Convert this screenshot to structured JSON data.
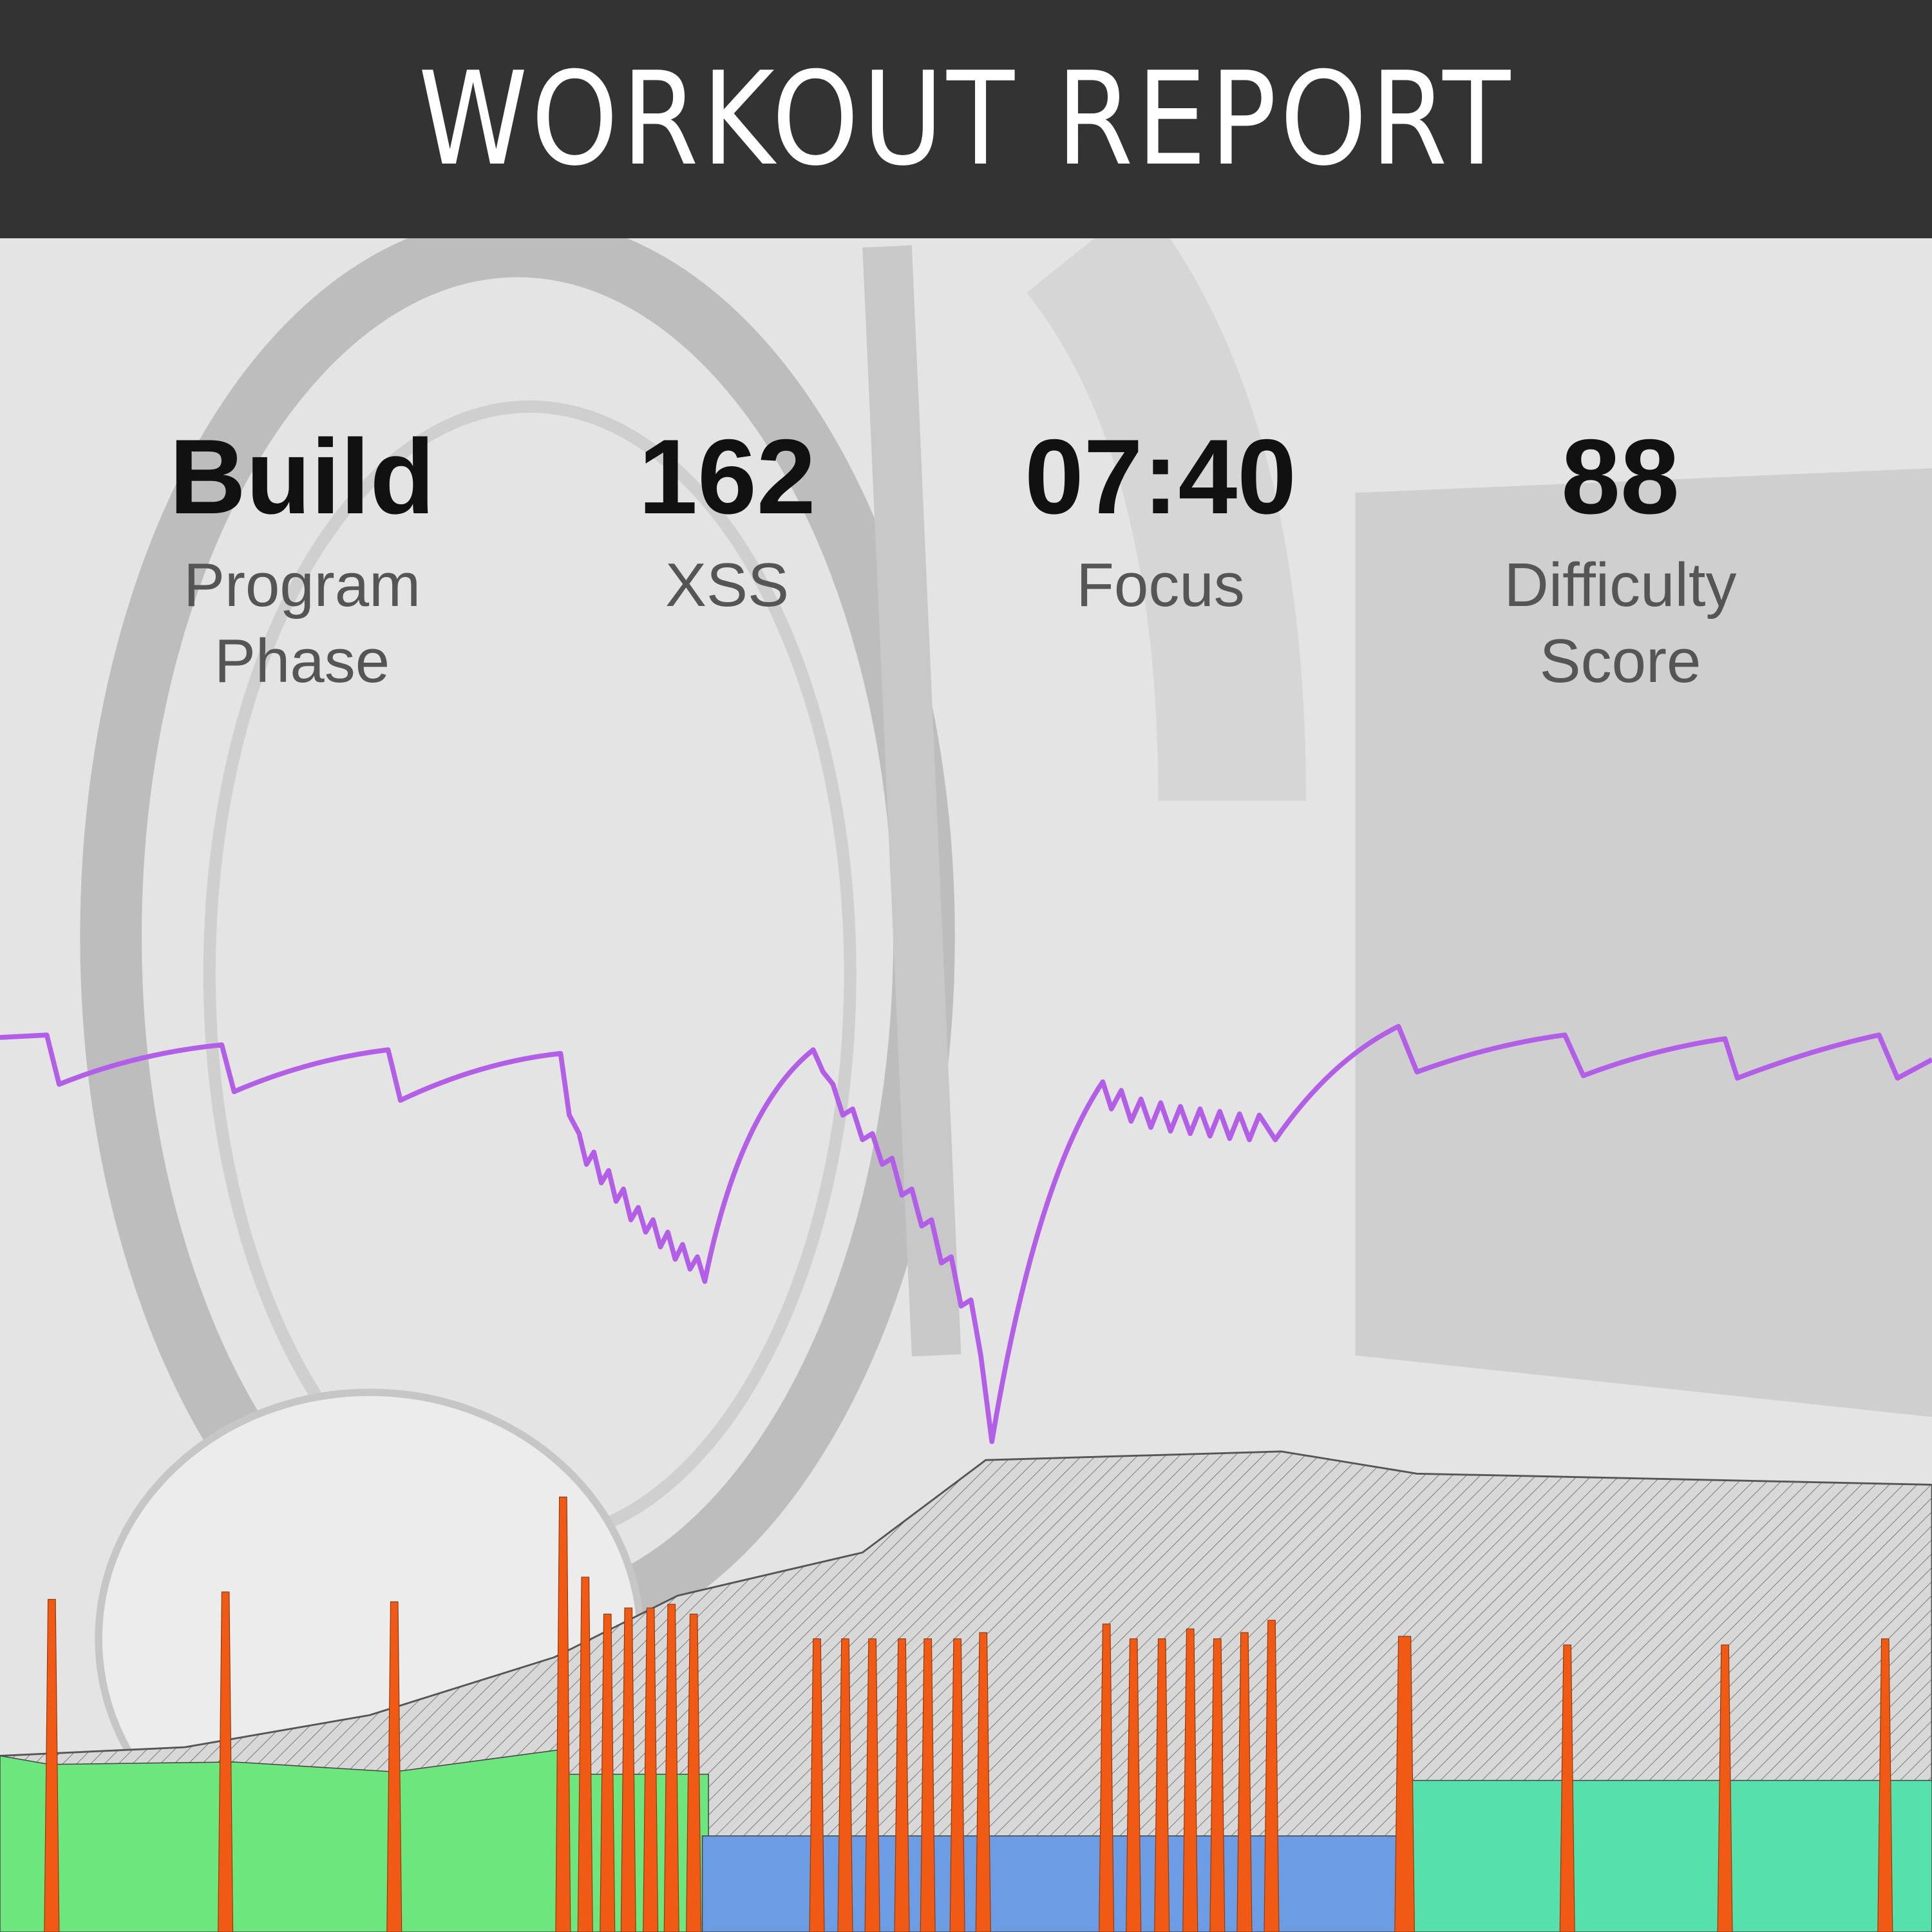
{
  "header": {
    "title": "WORKOUT REPORT"
  },
  "stats": [
    {
      "value": "Build",
      "label": "Program Phase"
    },
    {
      "value": "162",
      "label": "XSS"
    },
    {
      "value": "07:40",
      "label": "Focus"
    },
    {
      "value": "88",
      "label": "Difficulty Score"
    }
  ]
}
